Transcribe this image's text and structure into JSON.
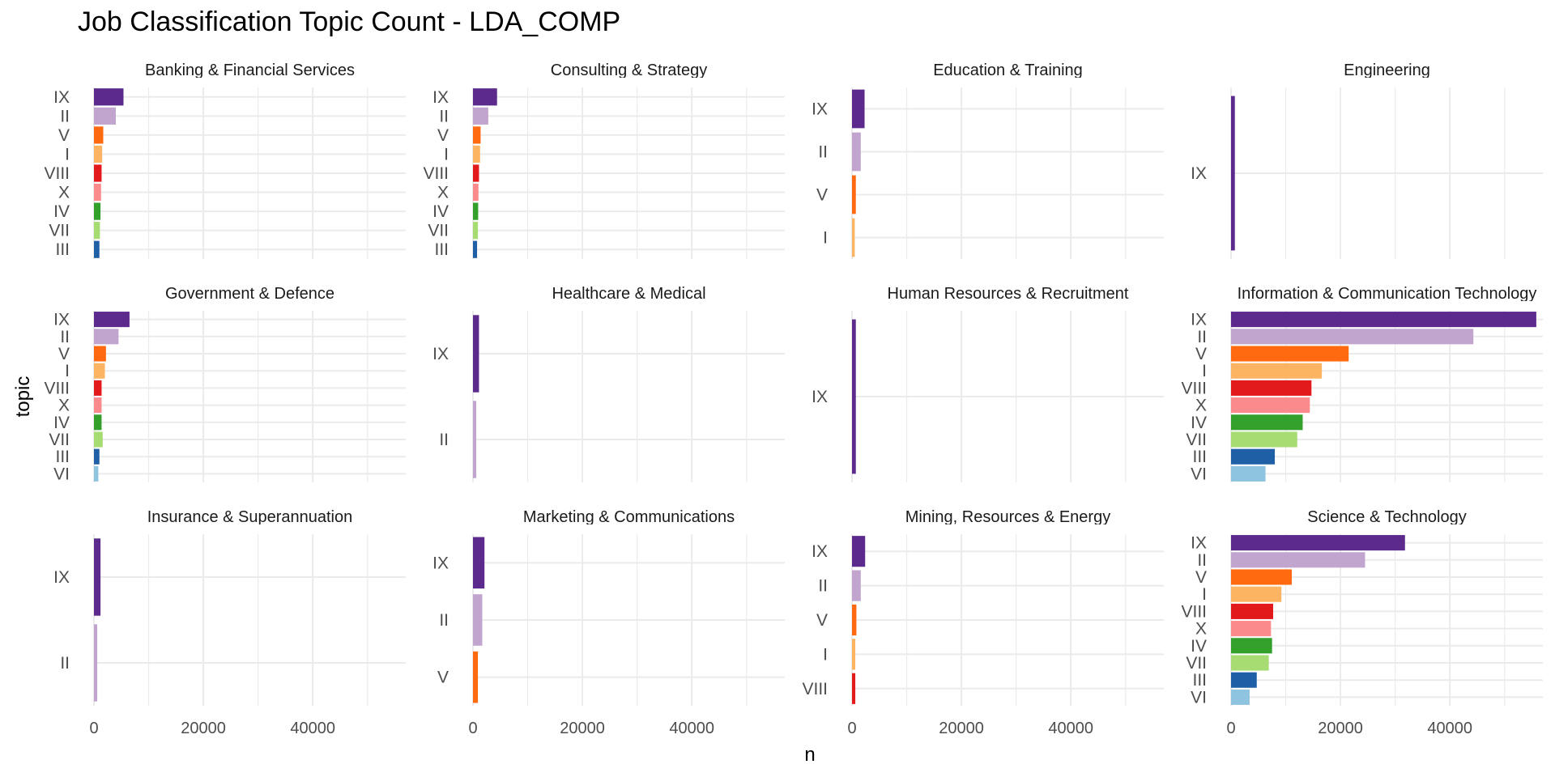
{
  "chart_data": {
    "type": "bar",
    "title": "Job Classification Topic Count - LDA_COMP",
    "xlabel": "n",
    "ylabel": "topic",
    "xlim": [
      0,
      57000
    ],
    "x_ticks": [
      0,
      20000,
      40000
    ],
    "x_tick_labels": [
      "0",
      "20000",
      "40000"
    ],
    "grid": true,
    "legend": "none",
    "topic_colors": {
      "IX": "#5b2a8c",
      "II": "#c2a5cf",
      "V": "#ff6a10",
      "I": "#fdb462",
      "VIII": "#e31a1c",
      "X": "#fb8a8c",
      "IV": "#33a02c",
      "VII": "#a6dc72",
      "III": "#1f5fa6",
      "VI": "#8fc4e0"
    },
    "facets": [
      {
        "title": "Banking & Financial Services",
        "topics": [
          "IX",
          "II",
          "V",
          "I",
          "VIII",
          "X",
          "IV",
          "VII",
          "III"
        ],
        "values": [
          5400,
          4000,
          1700,
          1500,
          1400,
          1300,
          1200,
          1100,
          1000
        ]
      },
      {
        "title": "Consulting & Strategy",
        "topics": [
          "IX",
          "II",
          "V",
          "I",
          "VIII",
          "X",
          "IV",
          "VII",
          "III"
        ],
        "values": [
          4400,
          2800,
          1400,
          1300,
          1100,
          1000,
          950,
          900,
          750
        ]
      },
      {
        "title": "Education & Training",
        "topics": [
          "IX",
          "II",
          "V",
          "I"
        ],
        "values": [
          2300,
          1600,
          700,
          500
        ]
      },
      {
        "title": "Engineering",
        "topics": [
          "IX"
        ],
        "values": [
          700
        ]
      },
      {
        "title": "Government & Defence",
        "topics": [
          "IX",
          "II",
          "V",
          "I",
          "VIII",
          "X",
          "IV",
          "VII",
          "III",
          "VI"
        ],
        "values": [
          6500,
          4500,
          2200,
          2000,
          1400,
          1400,
          1400,
          1600,
          1000,
          800
        ]
      },
      {
        "title": "Healthcare & Medical",
        "topics": [
          "IX",
          "II"
        ],
        "values": [
          1100,
          600
        ]
      },
      {
        "title": "Human Resources & Recruitment",
        "topics": [
          "IX"
        ],
        "values": [
          700
        ]
      },
      {
        "title": "Information & Communication Technology",
        "topics": [
          "IX",
          "II",
          "V",
          "I",
          "VIII",
          "X",
          "IV",
          "VII",
          "III",
          "VI"
        ],
        "values": [
          55800,
          44300,
          21500,
          16600,
          14700,
          14400,
          13100,
          12100,
          8000,
          6300
        ]
      },
      {
        "title": "Insurance & Superannuation",
        "topics": [
          "IX",
          "II"
        ],
        "values": [
          1200,
          600
        ]
      },
      {
        "title": "Marketing & Communications",
        "topics": [
          "IX",
          "II",
          "V"
        ],
        "values": [
          2100,
          1700,
          900
        ]
      },
      {
        "title": "Mining, Resources & Energy",
        "topics": [
          "IX",
          "II",
          "V",
          "I",
          "VIII"
        ],
        "values": [
          2400,
          1600,
          800,
          600,
          600
        ]
      },
      {
        "title": "Science & Technology",
        "topics": [
          "IX",
          "II",
          "V",
          "I",
          "VIII",
          "X",
          "IV",
          "VII",
          "III",
          "VI"
        ],
        "values": [
          31800,
          24500,
          11100,
          9200,
          7700,
          7300,
          7500,
          6900,
          4700,
          3400
        ]
      }
    ]
  }
}
